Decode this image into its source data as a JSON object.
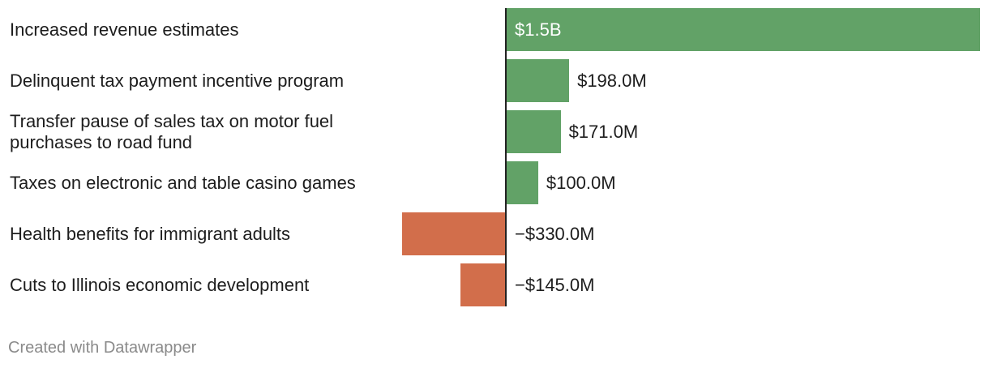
{
  "chart_data": {
    "type": "bar",
    "orientation": "horizontal",
    "categories": [
      "Increased revenue estimates",
      "Delinquent tax payment incentive program",
      "Transfer pause of sales tax on motor fuel purchases to road fund",
      "Taxes on electronic and table casino games",
      "Health benefits for immigrant adults",
      "Cuts to Illinois economic development"
    ],
    "values": [
      1500,
      198,
      171,
      100,
      -330,
      -145
    ],
    "value_labels": [
      "$1.5B",
      "$198.0M",
      "$171.0M",
      "$100.0M",
      "−$330.0M",
      "−$145.0M"
    ],
    "unit": "millions of dollars",
    "xlim": [
      -330,
      1500
    ],
    "colors": {
      "positive": "#62a267",
      "negative": "#d26e4b",
      "axis": "#222222"
    }
  },
  "footer": {
    "credit": "Created with Datawrapper"
  }
}
